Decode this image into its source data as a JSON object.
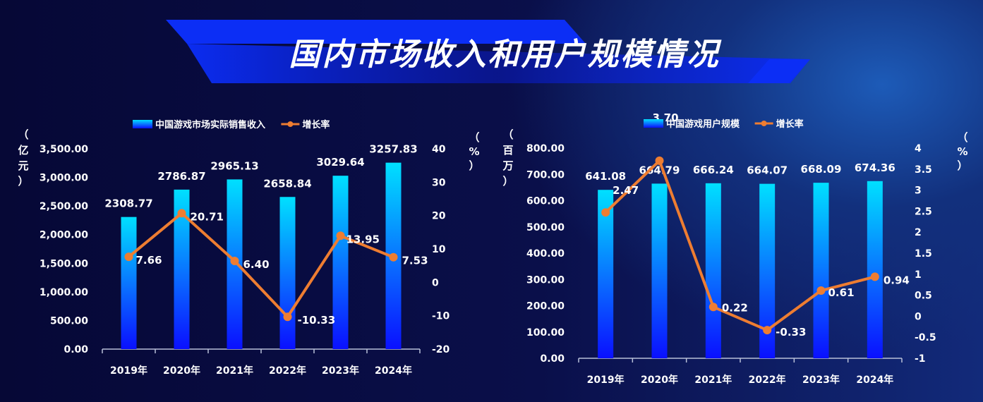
{
  "title": "国内市场收入和用户规模情况",
  "colors": {
    "bar_top": "#00e0ff",
    "bar_bottom": "#0a10ff",
    "line": "#ee7d31",
    "banner": "#0a22e0"
  },
  "chart_data": [
    {
      "type": "bar+line",
      "categories": [
        "2019年",
        "2020年",
        "2021年",
        "2022年",
        "2023年",
        "2024年"
      ],
      "series": [
        {
          "name": "中国游戏市场实际销售收入",
          "kind": "bar",
          "axis": "left",
          "values": [
            2308.77,
            2786.87,
            2965.13,
            2658.84,
            3029.64,
            3257.83
          ],
          "labels": [
            "2308.77",
            "2786.87",
            "2965.13",
            "2658.84",
            "3029.64",
            "3257.83"
          ]
        },
        {
          "name": "增长率",
          "kind": "line",
          "axis": "right",
          "values": [
            7.66,
            20.71,
            6.4,
            -10.33,
            13.95,
            7.53
          ],
          "labels": [
            "7.66",
            "20.71",
            "6.40",
            "-10.33",
            "13.95",
            "7.53"
          ]
        }
      ],
      "ylabel_left": "（亿元）",
      "ylabel_left_chars": [
        "（",
        "亿",
        "元",
        "）"
      ],
      "ylabel_right_chars": [
        "（",
        "%",
        "）"
      ],
      "ylim_left": [
        0,
        3500
      ],
      "ylim_right": [
        -20,
        40
      ],
      "left_ticks": [
        "0.00",
        "500.00",
        "1,000.00",
        "1,500.00",
        "2,000.00",
        "2,500.00",
        "3,000.00",
        "3,500.00"
      ],
      "right_ticks": [
        "-20",
        "-10",
        "0",
        "10",
        "20",
        "30",
        "40"
      ],
      "legend": "top-center",
      "grid": false
    },
    {
      "type": "bar+line",
      "categories": [
        "2019年",
        "2020年",
        "2021年",
        "2022年",
        "2023年",
        "2024年"
      ],
      "series": [
        {
          "name": "中国游戏用户规模",
          "kind": "bar",
          "axis": "left",
          "values": [
            641.08,
            664.79,
            666.24,
            664.07,
            668.09,
            674.36
          ],
          "labels": [
            "641.08",
            "664.79",
            "666.24",
            "664.07",
            "668.09",
            "674.36"
          ]
        },
        {
          "name": "增长率",
          "kind": "line",
          "axis": "right",
          "values": [
            2.47,
            3.7,
            0.22,
            -0.33,
            0.61,
            0.94
          ],
          "labels": [
            "2.47",
            "3.70",
            "0.22",
            "-0.33",
            "0.61",
            "0.94"
          ]
        }
      ],
      "ylabel_left": "（百万）",
      "ylabel_left_chars": [
        "（",
        "百",
        "万",
        "）"
      ],
      "ylabel_right_chars": [
        "（",
        "%",
        "）"
      ],
      "ylim_left": [
        0,
        800
      ],
      "ylim_right": [
        -1,
        4
      ],
      "left_ticks": [
        "0.00",
        "100.00",
        "200.00",
        "300.00",
        "400.00",
        "500.00",
        "600.00",
        "700.00",
        "800.00"
      ],
      "right_ticks": [
        "-1",
        "-0.5",
        "0",
        "0.5",
        "1",
        "1.5",
        "2",
        "2.5",
        "3",
        "3.5",
        "4"
      ],
      "legend": "top-center",
      "grid": false
    }
  ]
}
